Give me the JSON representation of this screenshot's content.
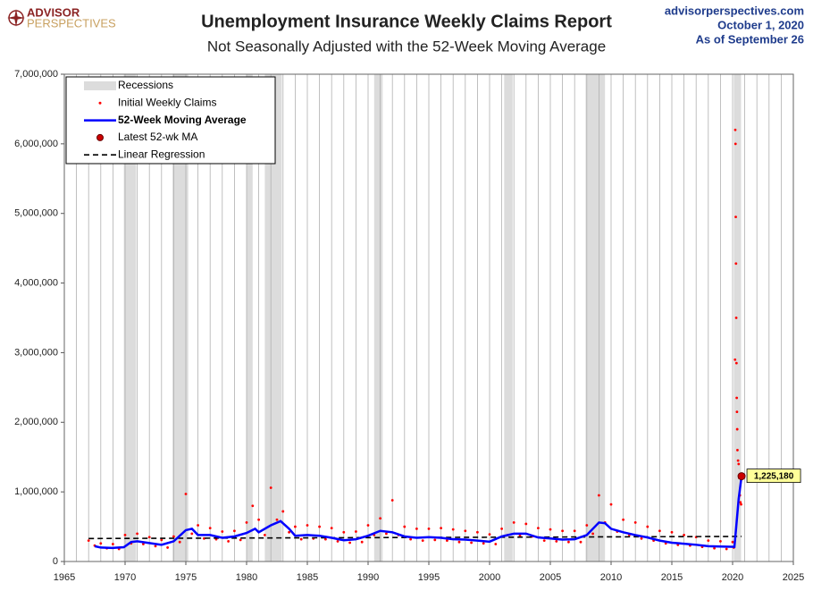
{
  "chart_data": {
    "type": "line",
    "brand": [
      "ADVISOR",
      "PERSPECTIVES"
    ],
    "title": "Unemployment Insurance Weekly Claims Report",
    "subtitle": "Not Seasonally Adjusted with the 52-Week Moving Average",
    "source_lines": [
      "advisorperspectives.com",
      "October 1, 2020",
      "As of September 26"
    ],
    "xlim": [
      1965,
      2025
    ],
    "xticks": [
      1965,
      1970,
      1975,
      1980,
      1985,
      1990,
      1995,
      2000,
      2005,
      2010,
      2015,
      2020,
      2025
    ],
    "ylim": [
      0,
      7000000
    ],
    "yticks": [
      0,
      {
        "value": 1000000,
        "label": "1,000,000"
      },
      {
        "value": 2000000,
        "label": "2,000,000"
      },
      {
        "value": 3000000,
        "label": "3,000,000"
      },
      {
        "value": 4000000,
        "label": "4,000,000"
      },
      {
        "value": 5000000,
        "label": "5,000,000"
      },
      {
        "value": 6000000,
        "label": "6,000,000"
      },
      {
        "value": 7000000,
        "label": "7,000,000"
      }
    ],
    "grid": true,
    "legend": "top-left",
    "recessions": {
      "name": "Recessions",
      "color": "#dcdcdc",
      "ranges": [
        [
          1969.9,
          1970.9
        ],
        [
          1973.9,
          1975.2
        ],
        [
          1980.0,
          1980.5
        ],
        [
          1981.5,
          1982.9
        ],
        [
          1990.5,
          1991.2
        ],
        [
          2001.2,
          2001.9
        ],
        [
          2007.9,
          2009.5
        ],
        [
          2020.1,
          2020.7
        ]
      ]
    },
    "series": [
      {
        "name": "Initial Weekly Claims",
        "color": "#ff0000",
        "style": "points",
        "x": [
          1967,
          1967.5,
          1968,
          1968.5,
          1969,
          1969.5,
          1970,
          1970.5,
          1971,
          1971.5,
          1972,
          1972.5,
          1973,
          1973.5,
          1974,
          1974.5,
          1975,
          1975.5,
          1976,
          1976.5,
          1977,
          1977.5,
          1978,
          1978.5,
          1979,
          1979.5,
          1980,
          1980.5,
          1981,
          1981.5,
          1982,
          1982.5,
          1983,
          1983.5,
          1984,
          1984.5,
          1985,
          1985.5,
          1986,
          1986.5,
          1987,
          1987.5,
          1988,
          1988.5,
          1989,
          1989.5,
          1990,
          1990.5,
          1991,
          1991.5,
          1992,
          1992.5,
          1993,
          1993.5,
          1994,
          1994.5,
          1995,
          1995.5,
          1996,
          1996.5,
          1997,
          1997.5,
          1998,
          1998.5,
          1999,
          1999.5,
          2000,
          2000.5,
          2001,
          2001.5,
          2002,
          2002.5,
          2003,
          2003.5,
          2004,
          2004.5,
          2005,
          2005.5,
          2006,
          2006.5,
          2007,
          2007.5,
          2008,
          2008.5,
          2009,
          2009.5,
          2010,
          2010.5,
          2011,
          2011.5,
          2012,
          2012.5,
          2013,
          2013.5,
          2014,
          2014.5,
          2015,
          2015.5,
          2016,
          2016.5,
          2017,
          2017.5,
          2018,
          2018.5,
          2019,
          2019.5,
          2020,
          2020.1,
          2020.2,
          2020.22,
          2020.24,
          2020.26,
          2020.28,
          2020.3,
          2020.32,
          2020.34,
          2020.36,
          2020.38,
          2020.4,
          2020.45,
          2020.5,
          2020.55,
          2020.6,
          2020.65,
          2020.7
        ],
        "values": [
          300000,
          230000,
          260000,
          190000,
          250000,
          180000,
          380000,
          260000,
          400000,
          250000,
          350000,
          220000,
          310000,
          200000,
          360000,
          280000,
          970000,
          400000,
          520000,
          330000,
          480000,
          320000,
          430000,
          290000,
          440000,
          310000,
          560000,
          800000,
          600000,
          380000,
          1060000,
          600000,
          720000,
          420000,
          500000,
          320000,
          520000,
          330000,
          500000,
          320000,
          480000,
          290000,
          420000,
          270000,
          430000,
          280000,
          520000,
          380000,
          620000,
          400000,
          880000,
          380000,
          500000,
          320000,
          470000,
          300000,
          470000,
          310000,
          480000,
          300000,
          460000,
          280000,
          440000,
          270000,
          420000,
          260000,
          390000,
          250000,
          470000,
          380000,
          560000,
          370000,
          540000,
          360000,
          480000,
          300000,
          460000,
          290000,
          440000,
          280000,
          440000,
          280000,
          520000,
          400000,
          950000,
          560000,
          820000,
          430000,
          600000,
          380000,
          560000,
          330000,
          500000,
          300000,
          440000,
          260000,
          420000,
          240000,
          380000,
          230000,
          350000,
          210000,
          300000,
          190000,
          290000,
          180000,
          280000,
          200000,
          2900000,
          6200000,
          6000000,
          4950000,
          4280000,
          3500000,
          2850000,
          2350000,
          2150000,
          1900000,
          1600000,
          1450000,
          1400000,
          1200000,
          950000,
          850000,
          820000
        ]
      },
      {
        "name": "52-Week Moving Average",
        "color": "#0000ff",
        "style": "line",
        "x": [
          1967.5,
          1968,
          1969,
          1969.9,
          1970.5,
          1971,
          1972,
          1973,
          1974,
          1975,
          1975.5,
          1976,
          1977,
          1978,
          1979,
          1980,
          1980.7,
          1981,
          1982,
          1982.8,
          1983.5,
          1984,
          1985,
          1986,
          1987,
          1988,
          1989,
          1990,
          1991,
          1992,
          1993,
          1994,
          1995,
          1996,
          1997,
          1998,
          1999,
          2000,
          2001,
          2002,
          2003,
          2004,
          2005,
          2006,
          2007,
          2008,
          2009,
          2009.5,
          2010,
          2011,
          2012,
          2013,
          2014,
          2015,
          2016,
          2017,
          2018,
          2019,
          2020.15,
          2020.3,
          2020.5,
          2020.74
        ],
        "values": [
          220000,
          200000,
          195000,
          205000,
          280000,
          290000,
          265000,
          240000,
          290000,
          450000,
          470000,
          380000,
          380000,
          340000,
          360000,
          410000,
          470000,
          420000,
          520000,
          580000,
          470000,
          370000,
          380000,
          370000,
          340000,
          305000,
          320000,
          370000,
          440000,
          420000,
          360000,
          340000,
          350000,
          340000,
          320000,
          315000,
          300000,
          285000,
          360000,
          400000,
          400000,
          345000,
          330000,
          315000,
          320000,
          380000,
          560000,
          550000,
          470000,
          420000,
          380000,
          345000,
          300000,
          270000,
          255000,
          240000,
          220000,
          215000,
          210000,
          500000,
          900000,
          1225180
        ]
      },
      {
        "name": "Latest 52-wk MA",
        "color": "#cc0000",
        "style": "marker",
        "x": [
          2020.74
        ],
        "values": [
          1225180
        ],
        "value_labels": [
          "1,225,180"
        ]
      },
      {
        "name": "Linear Regression",
        "color": "#000000",
        "style": "dashed",
        "x": [
          1967,
          2020.74
        ],
        "values": [
          330000,
          360000
        ]
      }
    ]
  }
}
